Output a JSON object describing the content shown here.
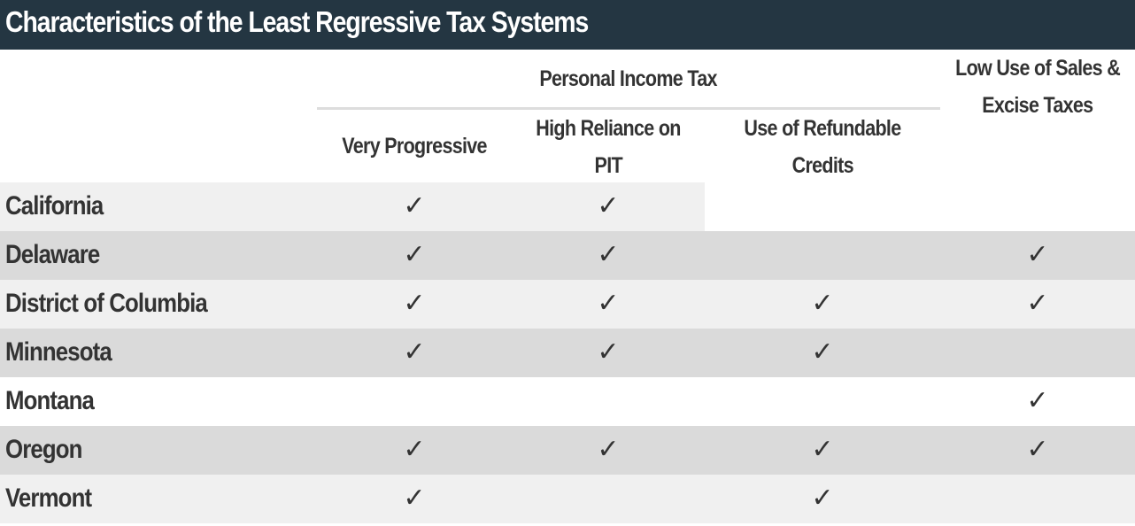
{
  "title": "Characteristics of the Least Regressive Tax Systems",
  "colors": {
    "title_bg": "#243642",
    "title_text": "#ffffff",
    "row_light": "#f0f0f0",
    "row_dark": "#dadada",
    "text": "#333333",
    "rule": "#dddddd"
  },
  "header": {
    "group_label": "Personal Income Tax",
    "columns": [
      {
        "key": "very_progressive",
        "lines": [
          "Very Progressive"
        ]
      },
      {
        "key": "high_reliance_pit",
        "lines": [
          "High Reliance on",
          "PIT"
        ]
      },
      {
        "key": "refundable_credits",
        "lines": [
          "Use of Refundable",
          "Credits"
        ]
      },
      {
        "key": "low_sales_excise",
        "lines": [
          "Low Use of Sales &",
          "Excise Taxes"
        ]
      }
    ]
  },
  "check_glyph": "✓",
  "chart_data": {
    "type": "table",
    "title": "Characteristics of the Least Regressive Tax Systems",
    "column_group": "Personal Income Tax",
    "columns": [
      "Very Progressive",
      "High Reliance on PIT",
      "Use of Refundable Credits",
      "Low Use of Sales & Excise Taxes"
    ],
    "rows": [
      {
        "state": "California",
        "values": [
          true,
          true,
          false,
          false
        ]
      },
      {
        "state": "Delaware",
        "values": [
          true,
          true,
          false,
          true
        ]
      },
      {
        "state": "District of Columbia",
        "values": [
          true,
          true,
          true,
          true
        ]
      },
      {
        "state": "Minnesota",
        "values": [
          true,
          true,
          true,
          false
        ]
      },
      {
        "state": "Montana",
        "values": [
          false,
          false,
          false,
          true
        ]
      },
      {
        "state": "Oregon",
        "values": [
          true,
          true,
          true,
          true
        ]
      },
      {
        "state": "Vermont",
        "values": [
          true,
          false,
          true,
          false
        ]
      }
    ]
  }
}
